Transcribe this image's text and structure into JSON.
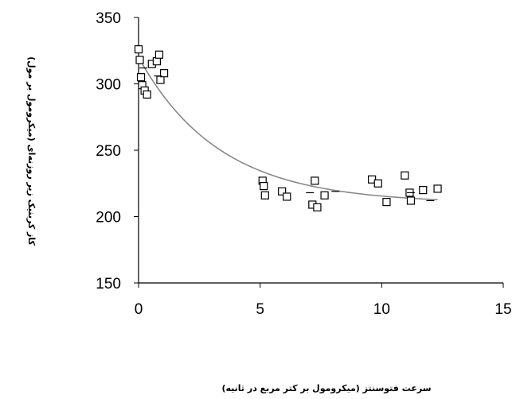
{
  "chart_data": {
    "type": "scatter",
    "xlabel": "سرعت فتوسنتز (میکرومول بر کتر مربع در ثانیه)",
    "ylabel": "کاز کربنیک زیر روزنه‌ای (میکرومول بر مول)",
    "xlim": [
      0,
      15
    ],
    "ylim": [
      150,
      350
    ],
    "x_ticks": [
      "0",
      "5",
      "10",
      "15"
    ],
    "y_ticks": [
      "350",
      "300",
      "250",
      "200",
      "150"
    ],
    "grid": false,
    "legend": "none",
    "points": [
      {
        "x": 0.0,
        "y": 326
      },
      {
        "x": 0.05,
        "y": 318
      },
      {
        "x": 0.1,
        "y": 305
      },
      {
        "x": 0.15,
        "y": 299
      },
      {
        "x": 0.25,
        "y": 295
      },
      {
        "x": 0.35,
        "y": 292
      },
      {
        "x": 0.55,
        "y": 315
      },
      {
        "x": 0.75,
        "y": 317
      },
      {
        "x": 0.85,
        "y": 322
      },
      {
        "x": 0.9,
        "y": 303
      },
      {
        "x": 1.05,
        "y": 308
      },
      {
        "x": 5.1,
        "y": 227
      },
      {
        "x": 5.15,
        "y": 223
      },
      {
        "x": 5.2,
        "y": 216
      },
      {
        "x": 5.9,
        "y": 219
      },
      {
        "x": 6.1,
        "y": 215
      },
      {
        "x": 7.15,
        "y": 209
      },
      {
        "x": 7.25,
        "y": 227
      },
      {
        "x": 7.35,
        "y": 207
      },
      {
        "x": 7.65,
        "y": 216
      },
      {
        "x": 9.6,
        "y": 228
      },
      {
        "x": 9.85,
        "y": 225
      },
      {
        "x": 10.2,
        "y": 211
      },
      {
        "x": 10.95,
        "y": 231
      },
      {
        "x": 11.15,
        "y": 218
      },
      {
        "x": 11.2,
        "y": 212
      },
      {
        "x": 11.7,
        "y": 220
      },
      {
        "x": 12.3,
        "y": 221
      }
    ],
    "dash_marks": [
      {
        "x": 0.2,
        "y": 312
      },
      {
        "x": 0.8,
        "y": 306
      },
      {
        "x": 7.05,
        "y": 218
      },
      {
        "x": 8.1,
        "y": 219
      },
      {
        "x": 11.2,
        "y": 218
      },
      {
        "x": 12.0,
        "y": 212
      }
    ],
    "curve": {
      "type": "exponential_fit",
      "x_range": [
        0,
        12.3
      ],
      "asymptote": 210,
      "amplitude": 110,
      "rate": 0.3
    },
    "colors": {
      "markers": "#000000",
      "curve": "#888888",
      "axes": "#000000"
    }
  }
}
